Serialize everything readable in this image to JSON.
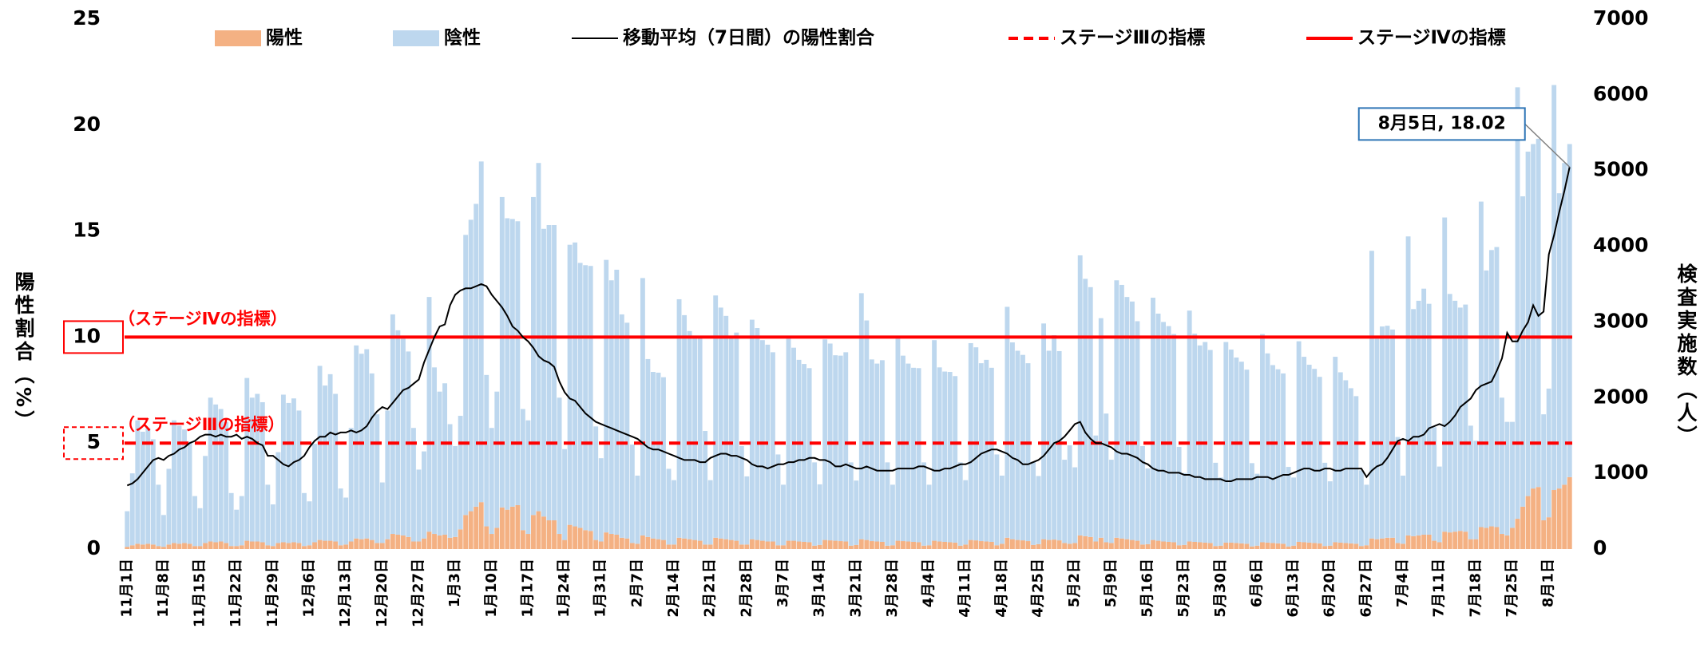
{
  "chart_data": {
    "type": "bar",
    "categories": [
      "11月1日",
      null,
      null,
      null,
      null,
      null,
      null,
      "11月8日",
      null,
      null,
      null,
      null,
      null,
      null,
      "11月15日",
      null,
      null,
      null,
      null,
      null,
      null,
      "11月22日",
      null,
      null,
      null,
      null,
      null,
      null,
      "11月29日",
      null,
      null,
      null,
      null,
      null,
      null,
      "12月6日",
      null,
      null,
      null,
      null,
      null,
      null,
      "12月13日",
      null,
      null,
      null,
      null,
      null,
      null,
      "12月20日",
      null,
      null,
      null,
      null,
      null,
      null,
      "12月27日",
      null,
      null,
      null,
      null,
      null,
      null,
      "1月3日",
      null,
      null,
      null,
      null,
      null,
      null,
      "1月10日",
      null,
      null,
      null,
      null,
      null,
      null,
      "1月17日",
      null,
      null,
      null,
      null,
      null,
      null,
      "1月24日",
      null,
      null,
      null,
      null,
      null,
      null,
      "1月31日",
      null,
      null,
      null,
      null,
      null,
      null,
      "2月7日",
      null,
      null,
      null,
      null,
      null,
      null,
      "2月14日",
      null,
      null,
      null,
      null,
      null,
      null,
      "2月21日",
      null,
      null,
      null,
      null,
      null,
      null,
      "2月28日",
      null,
      null,
      null,
      null,
      null,
      null,
      "3月7日",
      null,
      null,
      null,
      null,
      null,
      null,
      "3月14日",
      null,
      null,
      null,
      null,
      null,
      null,
      "3月21日",
      null,
      null,
      null,
      null,
      null,
      null,
      "3月28日",
      null,
      null,
      null,
      null,
      null,
      null,
      "4月4日",
      null,
      null,
      null,
      null,
      null,
      null,
      "4月11日",
      null,
      null,
      null,
      null,
      null,
      null,
      "4月18日",
      null,
      null,
      null,
      null,
      null,
      null,
      "4月25日",
      null,
      null,
      null,
      null,
      null,
      null,
      "5月2日",
      null,
      null,
      null,
      null,
      null,
      null,
      "5月9日",
      null,
      null,
      null,
      null,
      null,
      null,
      "5月16日",
      null,
      null,
      null,
      null,
      null,
      null,
      "5月23日",
      null,
      null,
      null,
      null,
      null,
      null,
      "5月30日",
      null,
      null,
      null,
      null,
      null,
      null,
      "6月6日",
      null,
      null,
      null,
      null,
      null,
      null,
      "6月13日",
      null,
      null,
      null,
      null,
      null,
      null,
      "6月20日",
      null,
      null,
      null,
      null,
      null,
      null,
      "6月27日",
      null,
      null,
      null,
      null,
      null,
      null,
      "7月4日",
      null,
      null,
      null,
      null,
      null,
      null,
      "7月11日",
      null,
      null,
      null,
      null,
      null,
      null,
      "7月18日",
      null,
      null,
      null,
      null,
      null,
      null,
      "7月25日",
      null,
      null,
      null,
      null,
      null,
      null,
      "8月1日",
      null,
      null,
      null,
      null
    ],
    "series": [
      {
        "name": "陽性",
        "color": "#f4b183",
        "axis": "y2",
        "values": [
          30,
          50,
          70,
          60,
          70,
          60,
          40,
          30,
          60,
          80,
          70,
          80,
          70,
          40,
          40,
          80,
          100,
          90,
          100,
          80,
          40,
          40,
          50,
          110,
          100,
          100,
          90,
          50,
          40,
          80,
          90,
          80,
          90,
          80,
          40,
          50,
          90,
          120,
          110,
          110,
          100,
          50,
          60,
          100,
          140,
          130,
          140,
          120,
          80,
          80,
          130,
          200,
          190,
          180,
          160,
          100,
          100,
          140,
          230,
          200,
          180,
          190,
          150,
          160,
          260,
          450,
          500,
          560,
          620,
          300,
          200,
          280,
          550,
          520,
          560,
          580,
          250,
          200,
          450,
          500,
          430,
          380,
          380,
          200,
          120,
          320,
          300,
          280,
          250,
          240,
          120,
          100,
          220,
          200,
          190,
          150,
          140,
          80,
          70,
          180,
          160,
          140,
          130,
          120,
          60,
          60,
          150,
          140,
          130,
          120,
          110,
          60,
          60,
          150,
          140,
          130,
          120,
          110,
          60,
          60,
          130,
          120,
          110,
          100,
          100,
          50,
          50,
          110,
          110,
          100,
          95,
          90,
          45,
          55,
          120,
          115,
          110,
          105,
          100,
          45,
          55,
          130,
          120,
          105,
          100,
          95,
          45,
          50,
          110,
          105,
          100,
          95,
          90,
          45,
          50,
          110,
          100,
          95,
          90,
          85,
          45,
          60,
          120,
          115,
          105,
          100,
          95,
          50,
          70,
          150,
          130,
          120,
          115,
          105,
          55,
          65,
          130,
          120,
          125,
          115,
          80,
          70,
          80,
          180,
          170,
          160,
          100,
          150,
          90,
          80,
          150,
          140,
          130,
          120,
          110,
          60,
          65,
          120,
          110,
          100,
          95,
          90,
          50,
          55,
          100,
          95,
          90,
          85,
          80,
          40,
          45,
          85,
          85,
          80,
          75,
          70,
          35,
          45,
          90,
          85,
          80,
          75,
          70,
          35,
          45,
          95,
          90,
          85,
          80,
          75,
          40,
          45,
          90,
          85,
          80,
          75,
          70,
          40,
          50,
          140,
          130,
          140,
          150,
          150,
          80,
          70,
          180,
          170,
          180,
          190,
          190,
          110,
          90,
          230,
          220,
          230,
          240,
          230,
          130,
          130,
          290,
          280,
          300,
          290,
          200,
          180,
          280,
          400,
          560,
          700,
          800,
          820,
          380,
          420,
          780,
          800,
          850,
          950
        ]
      },
      {
        "name": "陰性",
        "color": "#bdd7ee",
        "axis": "y2",
        "values": [
          470,
          950,
          1630,
          1490,
          1530,
          1390,
          810,
          420,
          1000,
          1620,
          1560,
          1500,
          1350,
          660,
          500,
          1150,
          1900,
          1820,
          1750,
          1600,
          700,
          480,
          650,
          2150,
          1900,
          1950,
          1850,
          800,
          550,
          1200,
          1950,
          1850,
          1900,
          1750,
          700,
          580,
          1300,
          2300,
          2050,
          2200,
          1950,
          750,
          620,
          1500,
          2550,
          2450,
          2500,
          2200,
          1700,
          800,
          1700,
          2900,
          2700,
          2600,
          2450,
          1500,
          950,
          1150,
          3100,
          2200,
          1900,
          2000,
          1500,
          1200,
          1500,
          3700,
          3850,
          4000,
          4500,
          2000,
          1400,
          1800,
          4100,
          3850,
          3800,
          3750,
          1600,
          1500,
          4200,
          4600,
          3800,
          3900,
          3900,
          1800,
          1200,
          3700,
          3750,
          3500,
          3500,
          3500,
          1500,
          1100,
          3600,
          3350,
          3500,
          2950,
          2850,
          1300,
          900,
          3400,
          2350,
          2200,
          2200,
          2150,
          1000,
          850,
          3150,
          2950,
          2750,
          2700,
          2700,
          1500,
          850,
          3200,
          3050,
          2950,
          2700,
          2750,
          1300,
          900,
          2900,
          2800,
          2650,
          2600,
          2500,
          1200,
          800,
          2700,
          2550,
          2400,
          2350,
          2300,
          1100,
          800,
          2650,
          2600,
          2450,
          2450,
          2500,
          1100,
          850,
          3250,
          2900,
          2400,
          2350,
          2400,
          1100,
          800,
          2700,
          2450,
          2350,
          2300,
          2300,
          1100,
          800,
          2650,
          2300,
          2250,
          2250,
          2200,
          1100,
          850,
          2600,
          2550,
          2350,
          2400,
          2300,
          1200,
          900,
          3050,
          2600,
          2500,
          2450,
          2350,
          1100,
          900,
          2850,
          2500,
          2700,
          2500,
          1100,
          1300,
          1000,
          3700,
          3400,
          3300,
          1400,
          2900,
          1700,
          1100,
          3400,
          3350,
          3200,
          3150,
          2900,
          1300,
          1000,
          3200,
          3000,
          2900,
          2850,
          2750,
          1300,
          950,
          3050,
          2750,
          2600,
          2650,
          2550,
          1100,
          900,
          2650,
          2550,
          2450,
          2400,
          2300,
          1100,
          950,
          2750,
          2500,
          2350,
          2300,
          2250,
          1050,
          900,
          2650,
          2450,
          2350,
          2300,
          2200,
          1100,
          850,
          2450,
          2250,
          2150,
          2050,
          1950,
          1000,
          800,
          3800,
          2650,
          2800,
          2800,
          2750,
          1400,
          900,
          3950,
          3000,
          3100,
          3250,
          3050,
          1500,
          1000,
          4150,
          3150,
          3050,
          2950,
          3000,
          1500,
          1300,
          4300,
          3400,
          3650,
          3700,
          1800,
          1500,
          1400,
          5700,
          4100,
          4550,
          4550,
          4600,
          1400,
          1700,
          5350,
          3900,
          4250,
          4400
        ]
      },
      {
        "name": "移動平均（7日間）の陽性割合",
        "color": "#000000",
        "type": "line",
        "values": [
          3.0,
          3.1,
          3.3,
          3.6,
          3.9,
          4.2,
          4.3,
          4.2,
          4.4,
          4.5,
          4.7,
          4.8,
          5.0,
          5.1,
          5.3,
          5.4,
          5.4,
          5.3,
          5.4,
          5.3,
          5.3,
          5.4,
          5.2,
          5.3,
          5.2,
          5.0,
          4.9,
          4.4,
          4.4,
          4.2,
          4.0,
          3.9,
          4.1,
          4.2,
          4.4,
          4.8,
          5.1,
          5.3,
          5.3,
          5.5,
          5.4,
          5.5,
          5.5,
          5.6,
          5.5,
          5.6,
          5.8,
          6.2,
          6.5,
          6.7,
          6.6,
          6.9,
          7.2,
          7.5,
          7.6,
          7.8,
          8.0,
          8.8,
          9.4,
          10.0,
          10.5,
          10.6,
          11.5,
          12.0,
          12.2,
          12.3,
          12.3,
          12.4,
          12.5,
          12.4,
          12.0,
          11.7,
          11.4,
          11.0,
          10.5,
          10.3,
          10.0,
          9.8,
          9.5,
          9.1,
          8.9,
          8.8,
          8.6,
          7.9,
          7.4,
          7.1,
          7.0,
          6.7,
          6.4,
          6.2,
          6.0,
          5.9,
          5.8,
          5.7,
          5.6,
          5.5,
          5.4,
          5.3,
          5.2,
          5.0,
          4.8,
          4.7,
          4.7,
          4.6,
          4.5,
          4.4,
          4.3,
          4.2,
          4.2,
          4.2,
          4.1,
          4.1,
          4.3,
          4.4,
          4.5,
          4.5,
          4.4,
          4.4,
          4.3,
          4.2,
          4.0,
          3.9,
          3.9,
          3.8,
          3.9,
          4.0,
          4.0,
          4.1,
          4.1,
          4.2,
          4.2,
          4.3,
          4.3,
          4.2,
          4.2,
          4.1,
          3.9,
          3.9,
          4.0,
          3.9,
          3.8,
          3.8,
          3.9,
          3.8,
          3.7,
          3.7,
          3.7,
          3.7,
          3.8,
          3.8,
          3.8,
          3.8,
          3.9,
          3.9,
          3.8,
          3.7,
          3.7,
          3.8,
          3.8,
          3.9,
          4.0,
          4.0,
          4.1,
          4.3,
          4.5,
          4.6,
          4.7,
          4.7,
          4.6,
          4.5,
          4.3,
          4.2,
          4.0,
          4.0,
          4.1,
          4.2,
          4.4,
          4.7,
          5.0,
          5.1,
          5.3,
          5.6,
          5.9,
          6.0,
          5.5,
          5.2,
          5.0,
          5.0,
          4.9,
          4.8,
          4.6,
          4.5,
          4.5,
          4.4,
          4.3,
          4.1,
          4.0,
          3.8,
          3.7,
          3.7,
          3.6,
          3.6,
          3.6,
          3.5,
          3.5,
          3.4,
          3.4,
          3.3,
          3.3,
          3.3,
          3.3,
          3.2,
          3.2,
          3.3,
          3.3,
          3.3,
          3.3,
          3.4,
          3.4,
          3.4,
          3.3,
          3.4,
          3.5,
          3.5,
          3.6,
          3.7,
          3.8,
          3.8,
          3.7,
          3.7,
          3.8,
          3.8,
          3.7,
          3.7,
          3.8,
          3.8,
          3.8,
          3.8,
          3.4,
          3.7,
          3.9,
          4.0,
          4.3,
          4.7,
          5.1,
          5.2,
          5.1,
          5.3,
          5.3,
          5.4,
          5.7,
          5.8,
          5.9,
          5.8,
          6.0,
          6.3,
          6.7,
          6.9,
          7.1,
          7.5,
          7.7,
          7.8,
          7.9,
          8.4,
          9.0,
          10.2,
          9.8,
          9.8,
          10.3,
          10.7,
          11.5,
          11.0,
          11.2,
          13.9,
          14.8,
          15.9,
          16.9,
          18.02
        ]
      }
    ],
    "ref_lines": [
      {
        "name": "ステージⅢの指標",
        "label": "（ステージⅢの指標）",
        "value": 5,
        "color": "#ff0000",
        "dashed": true
      },
      {
        "name": "ステージⅣの指標",
        "label": "（ステージⅣの指標）",
        "value": 10,
        "color": "#ff0000",
        "dashed": false
      }
    ],
    "callout": "8月5日, 18.02",
    "ylabel": "陽性割合（%）",
    "y2label": "検査実施数（人）",
    "ylim": [
      0,
      25
    ],
    "yticks": [
      0,
      5,
      10,
      15,
      20,
      25
    ],
    "y2lim": [
      0,
      7000
    ],
    "y2ticks": [
      0,
      1000,
      2000,
      3000,
      4000,
      5000,
      6000,
      7000
    ],
    "legend": "top"
  }
}
